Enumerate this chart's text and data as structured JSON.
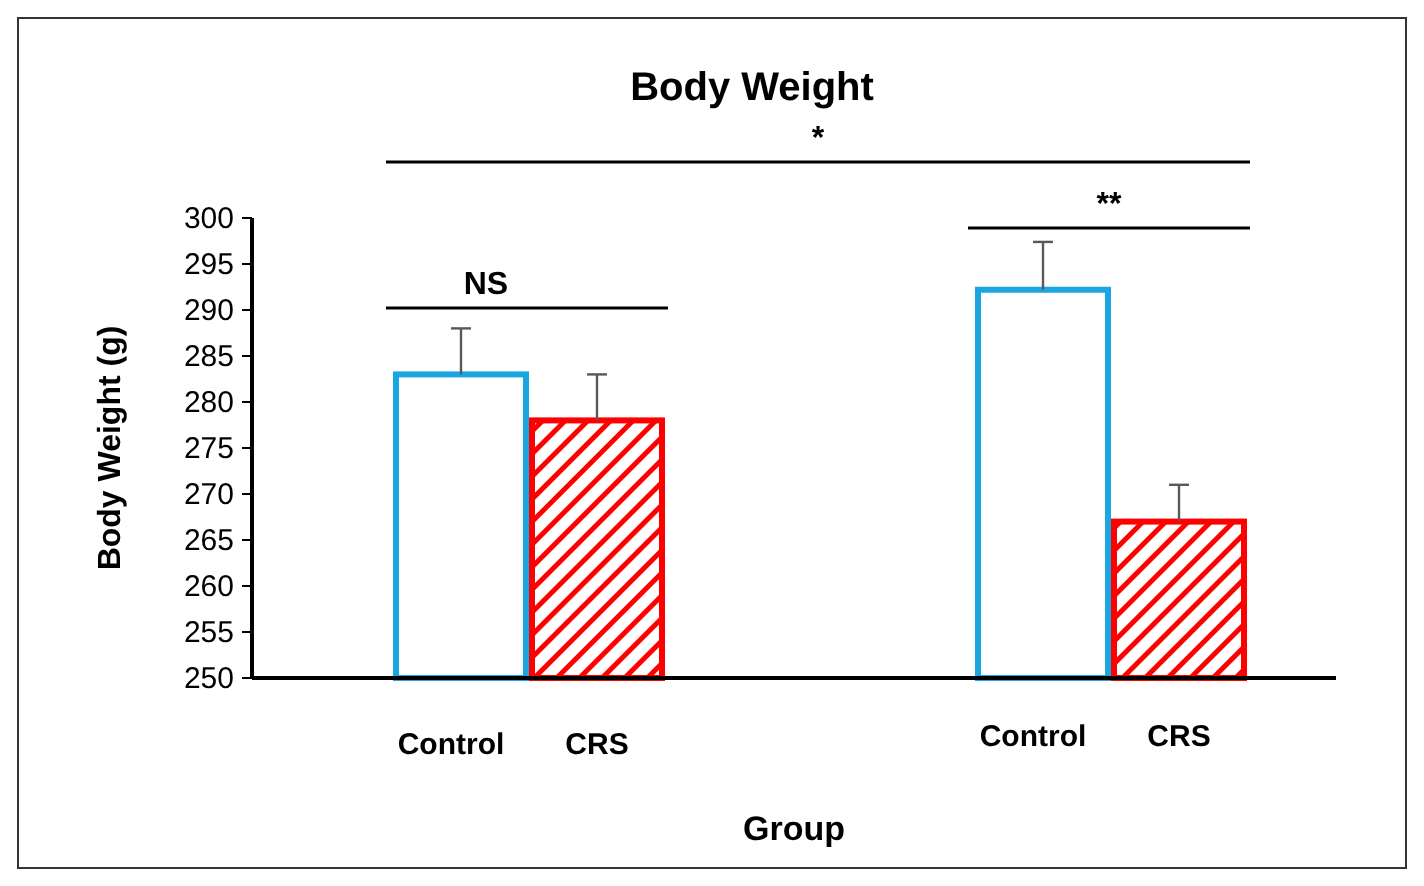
{
  "chart_data": {
    "type": "bar",
    "title": "Body Weight",
    "xlabel": "Group",
    "ylabel": "Body Weight (g)",
    "categories": [
      "Control",
      "CRS",
      "Control",
      "CRS"
    ],
    "series": [
      {
        "color": "#1aa6e0",
        "values": [
          283,
          null,
          292.2,
          null
        ],
        "errors": [
          [
            283,
            288
          ],
          null,
          [
            292.2,
            297.4
          ],
          null
        ]
      },
      {
        "color": "#ff0000",
        "values": [
          null,
          278,
          null,
          267
        ],
        "errors": [
          null,
          [
            278,
            283
          ],
          null,
          [
            267,
            271
          ]
        ]
      }
    ],
    "ylim": [
      250,
      300
    ],
    "yticks": [
      250,
      255,
      260,
      265,
      270,
      275,
      280,
      285,
      290,
      295,
      300
    ],
    "annotations": [
      "NS",
      "**",
      "*"
    ],
    "grid": false
  }
}
